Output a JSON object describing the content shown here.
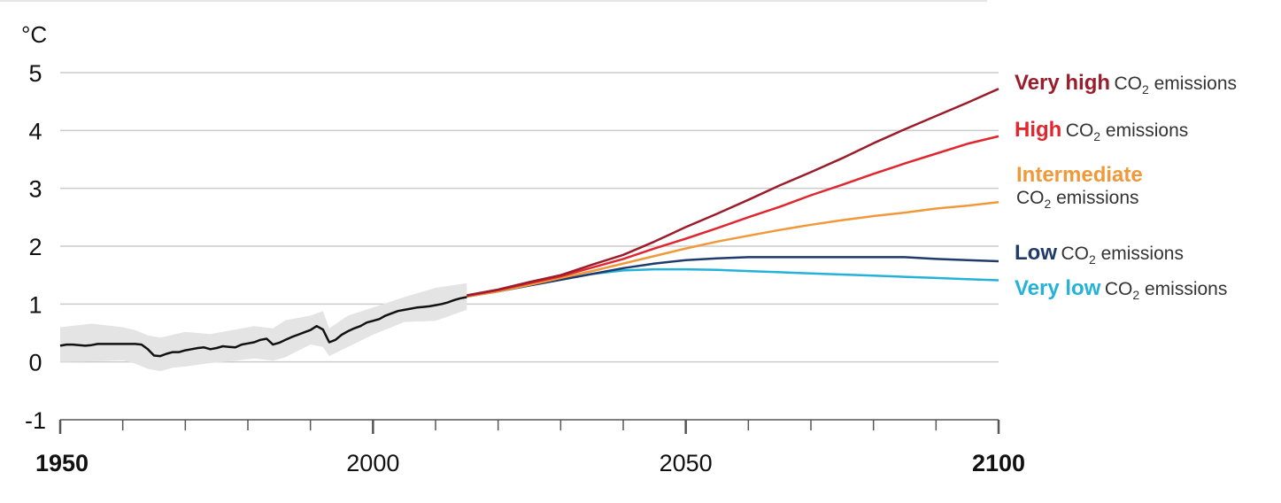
{
  "chart_data": {
    "type": "line",
    "title": "",
    "ylabel": "°C",
    "xlabel": "",
    "xlim": [
      1950,
      2100
    ],
    "ylim": [
      -1,
      5
    ],
    "x_ticks": [
      1950,
      2000,
      2050,
      2100
    ],
    "x_tick_labels": [
      "1950",
      "2000",
      "2050",
      "2100"
    ],
    "y_ticks": [
      -1,
      0,
      1,
      2,
      3,
      4,
      5
    ],
    "y_tick_labels": [
      "-1",
      "0",
      "1",
      "2",
      "3",
      "4",
      "5"
    ],
    "grid": "horizontal",
    "colors": {
      "historical": "#111111",
      "band": "#e4e4e4",
      "very_high": "#9b1c2a",
      "high": "#e0262e",
      "intermediate": "#f0993a",
      "low": "#1f3a6b",
      "very_low": "#24b2d8"
    },
    "historical": {
      "x": [
        1950,
        1951,
        1952,
        1953,
        1954,
        1955,
        1956,
        1957,
        1958,
        1959,
        1960,
        1961,
        1962,
        1963,
        1964,
        1965,
        1966,
        1967,
        1968,
        1969,
        1970,
        1971,
        1972,
        1973,
        1974,
        1975,
        1976,
        1977,
        1978,
        1979,
        1980,
        1981,
        1982,
        1983,
        1984,
        1985,
        1986,
        1987,
        1988,
        1989,
        1990,
        1991,
        1992,
        1993,
        1994,
        1995,
        1996,
        1997,
        1998,
        1999,
        2000,
        2001,
        2002,
        2003,
        2004,
        2005,
        2006,
        2007,
        2008,
        2009,
        2010,
        2011,
        2012,
        2013,
        2014,
        2015
      ],
      "y": [
        0.28,
        0.3,
        0.3,
        0.29,
        0.28,
        0.29,
        0.31,
        0.31,
        0.31,
        0.31,
        0.31,
        0.31,
        0.31,
        0.3,
        0.22,
        0.11,
        0.1,
        0.14,
        0.17,
        0.17,
        0.2,
        0.22,
        0.24,
        0.25,
        0.22,
        0.24,
        0.27,
        0.26,
        0.25,
        0.3,
        0.32,
        0.34,
        0.38,
        0.4,
        0.3,
        0.33,
        0.38,
        0.43,
        0.47,
        0.51,
        0.55,
        0.62,
        0.56,
        0.34,
        0.38,
        0.47,
        0.53,
        0.58,
        0.62,
        0.68,
        0.71,
        0.74,
        0.8,
        0.84,
        0.88,
        0.9,
        0.92,
        0.94,
        0.95,
        0.96,
        0.98,
        1.0,
        1.03,
        1.07,
        1.1,
        1.12
      ]
    },
    "historical_range": {
      "x": [
        1950,
        1955,
        1960,
        1962,
        1964,
        1966,
        1968,
        1970,
        1974,
        1978,
        1981,
        1984,
        1986,
        1990,
        1992,
        1993,
        1996,
        2000,
        2005,
        2010,
        2015
      ],
      "upper": [
        0.6,
        0.66,
        0.6,
        0.55,
        0.46,
        0.42,
        0.47,
        0.52,
        0.48,
        0.56,
        0.62,
        0.58,
        0.72,
        0.8,
        0.88,
        0.58,
        0.8,
        0.94,
        1.12,
        1.28,
        1.36
      ],
      "lower": [
        0.0,
        0.01,
        0.03,
        -0.03,
        -0.12,
        -0.16,
        -0.1,
        -0.08,
        -0.02,
        0.02,
        0.06,
        0.02,
        0.08,
        0.3,
        0.26,
        0.1,
        0.26,
        0.47,
        0.69,
        0.71,
        0.9
      ]
    },
    "series": [
      {
        "key": "very_high",
        "name_bold": "Very high",
        "x": [
          2015,
          2020,
          2025,
          2030,
          2035,
          2040,
          2045,
          2050,
          2055,
          2060,
          2065,
          2070,
          2075,
          2080,
          2085,
          2090,
          2095,
          2100
        ],
        "y": [
          1.15,
          1.25,
          1.38,
          1.5,
          1.68,
          1.85,
          2.08,
          2.33,
          2.56,
          2.8,
          3.05,
          3.28,
          3.52,
          3.78,
          4.02,
          4.25,
          4.48,
          4.72
        ]
      },
      {
        "key": "high",
        "name_bold": "High",
        "x": [
          2015,
          2020,
          2025,
          2030,
          2035,
          2040,
          2045,
          2050,
          2055,
          2060,
          2065,
          2070,
          2075,
          2080,
          2085,
          2090,
          2095,
          2100
        ],
        "y": [
          1.14,
          1.24,
          1.36,
          1.48,
          1.63,
          1.78,
          1.96,
          2.13,
          2.31,
          2.5,
          2.68,
          2.88,
          3.06,
          3.25,
          3.43,
          3.6,
          3.77,
          3.9
        ]
      },
      {
        "key": "intermediate",
        "name_bold": "Intermediate",
        "x": [
          2015,
          2020,
          2025,
          2030,
          2035,
          2040,
          2045,
          2050,
          2055,
          2060,
          2065,
          2070,
          2075,
          2080,
          2085,
          2090,
          2095,
          2100
        ],
        "y": [
          1.13,
          1.22,
          1.33,
          1.45,
          1.57,
          1.7,
          1.83,
          1.96,
          2.08,
          2.18,
          2.28,
          2.37,
          2.45,
          2.52,
          2.58,
          2.65,
          2.7,
          2.76
        ]
      },
      {
        "key": "low",
        "name_bold": "Low",
        "x": [
          2015,
          2020,
          2025,
          2030,
          2035,
          2040,
          2045,
          2050,
          2055,
          2060,
          2065,
          2070,
          2075,
          2080,
          2085,
          2090,
          2095,
          2100
        ],
        "y": [
          1.13,
          1.22,
          1.32,
          1.42,
          1.52,
          1.62,
          1.7,
          1.76,
          1.79,
          1.81,
          1.81,
          1.81,
          1.81,
          1.81,
          1.81,
          1.78,
          1.76,
          1.74
        ]
      },
      {
        "key": "very_low",
        "name_bold": "Very low",
        "x": [
          2015,
          2020,
          2025,
          2030,
          2035,
          2040,
          2045,
          2050,
          2055,
          2060,
          2065,
          2070,
          2075,
          2080,
          2085,
          2090,
          2095,
          2100
        ],
        "y": [
          1.13,
          1.22,
          1.32,
          1.42,
          1.52,
          1.58,
          1.6,
          1.6,
          1.59,
          1.57,
          1.55,
          1.53,
          1.51,
          1.49,
          1.47,
          1.45,
          1.43,
          1.41
        ]
      }
    ],
    "legend_suffix": "CO",
    "legend_suffix_sub": "2",
    "legend_suffix_tail": " emissions"
  }
}
